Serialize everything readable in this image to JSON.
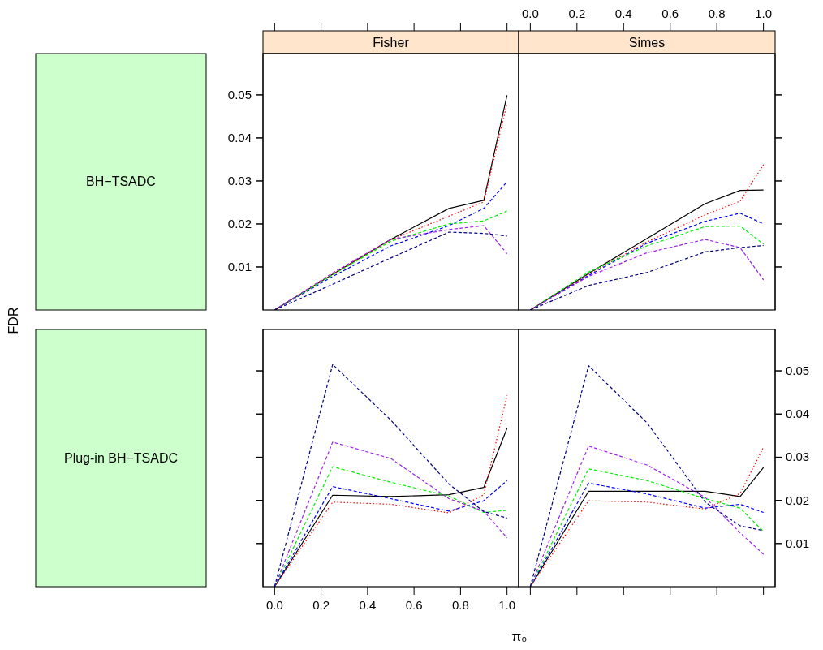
{
  "chart_data": [
    {
      "type": "line",
      "title": "Fisher",
      "ylabel": "FDR",
      "annotations": [
        "BH−TSADC"
      ],
      "x": [
        0,
        0.25,
        0.5,
        0.75,
        0.9,
        1.0
      ],
      "xlim": [
        -0.05,
        1.05
      ],
      "ylim": [
        0,
        0.0596
      ],
      "xticks": [
        {
          "value": 0,
          "label": null
        },
        {
          "value": 0.2,
          "label": null
        },
        {
          "value": 0.4,
          "label": null
        },
        {
          "value": 0.6,
          "label": null
        },
        {
          "value": 0.8,
          "label": null
        },
        {
          "value": 1,
          "label": null
        }
      ],
      "yticks": [
        0.01,
        0.02,
        0.03,
        0.04,
        0.05
      ],
      "tick_labels": "y",
      "marker": "none",
      "grid": false,
      "series": [
        {
          "color": "#000000",
          "line_style": "solid",
          "values": [
            0,
            0.0083,
            0.0164,
            0.0236,
            0.0255,
            0.0499
          ]
        },
        {
          "color": "#ff0000",
          "line_style": "dotted",
          "values": [
            0,
            0.0083,
            0.0163,
            0.0218,
            0.0251,
            0.048
          ]
        },
        {
          "color": "#0000ff",
          "line_style": "dashed",
          "values": [
            0,
            0.0078,
            0.0149,
            0.0196,
            0.0236,
            0.0298
          ]
        },
        {
          "color": "#00ee00",
          "line_style": "dashed",
          "values": [
            0,
            0.0082,
            0.016,
            0.02,
            0.0207,
            0.023
          ]
        },
        {
          "color": "#a020f0",
          "line_style": "dashed",
          "values": [
            0,
            0.0086,
            0.0164,
            0.0187,
            0.0196,
            0.0131
          ]
        },
        {
          "color": "#000080",
          "line_style": "dashed",
          "values": [
            0,
            0.006,
            0.0121,
            0.0181,
            0.0178,
            0.0172
          ]
        }
      ]
    },
    {
      "type": "line",
      "title": "Simes",
      "x": [
        0,
        0.25,
        0.5,
        0.75,
        0.9,
        1.0
      ],
      "xlim": [
        -0.05,
        1.05
      ],
      "ylim": [
        0,
        0.0596
      ],
      "xticks": [
        {
          "value": 0,
          "label": "0.0"
        },
        0.2,
        0.4,
        0.6,
        0.8,
        {
          "value": 1,
          "label": "1.0"
        }
      ],
      "yticks": [
        0.01,
        0.02,
        0.03,
        0.04,
        0.05
      ],
      "tick_labels": "x",
      "marker": "none",
      "grid": false,
      "series": [
        {
          "color": "#000000",
          "line_style": "solid",
          "values": [
            0,
            0.0085,
            0.0166,
            0.0247,
            0.0278,
            0.0279
          ]
        },
        {
          "color": "#ff0000",
          "line_style": "dotted",
          "values": [
            0,
            0.0083,
            0.0158,
            0.0221,
            0.0253,
            0.0338
          ]
        },
        {
          "color": "#0000ff",
          "line_style": "dashed",
          "values": [
            0,
            0.008,
            0.0155,
            0.0206,
            0.0225,
            0.02
          ]
        },
        {
          "color": "#00ee00",
          "line_style": "dashed",
          "values": [
            0,
            0.0088,
            0.0149,
            0.0194,
            0.0195,
            0.0153
          ]
        },
        {
          "color": "#a020f0",
          "line_style": "dashed",
          "values": [
            0,
            0.0078,
            0.0133,
            0.0164,
            0.0145,
            0.007
          ]
        },
        {
          "color": "#000080",
          "line_style": "dashed",
          "values": [
            0,
            0.0057,
            0.0087,
            0.0135,
            0.0145,
            0.015
          ]
        }
      ]
    },
    {
      "type": "line",
      "xlabel": "π₀",
      "annotations": [
        "Plug-in BH−TSADC"
      ],
      "x": [
        0,
        0.25,
        0.5,
        0.75,
        0.9,
        1.0
      ],
      "xlim": [
        -0.05,
        1.05
      ],
      "ylim": [
        0,
        0.0596
      ],
      "xticks": [
        {
          "value": 0,
          "label": "0.0"
        },
        0.2,
        0.4,
        0.6,
        0.8,
        {
          "value": 1,
          "label": "1.0"
        }
      ],
      "yticks": [
        0.01,
        0.02,
        0.03,
        0.04,
        0.05
      ],
      "tick_labels": "x",
      "marker": "none",
      "grid": false,
      "series": [
        {
          "color": "#000000",
          "line_style": "solid",
          "values": [
            0,
            0.0212,
            0.0209,
            0.0213,
            0.023,
            0.0367
          ]
        },
        {
          "color": "#ff0000",
          "line_style": "dotted",
          "values": [
            0,
            0.0196,
            0.0191,
            0.0171,
            0.0213,
            0.0443
          ]
        },
        {
          "color": "#0000ff",
          "line_style": "dashed",
          "values": [
            0,
            0.0232,
            0.0204,
            0.0175,
            0.0199,
            0.0246
          ]
        },
        {
          "color": "#00ee00",
          "line_style": "dashed",
          "values": [
            0,
            0.0278,
            0.0242,
            0.021,
            0.0172,
            0.0177
          ]
        },
        {
          "color": "#a020f0",
          "line_style": "dashed",
          "values": [
            0,
            0.0335,
            0.0297,
            0.0204,
            0.0175,
            0.0113
          ]
        },
        {
          "color": "#000080",
          "line_style": "dashed",
          "values": [
            0,
            0.0515,
            0.0386,
            0.0238,
            0.0174,
            0.0159
          ]
        }
      ]
    },
    {
      "type": "line",
      "x": [
        0,
        0.25,
        0.5,
        0.75,
        0.9,
        1.0
      ],
      "xlim": [
        -0.05,
        1.05
      ],
      "ylim": [
        0,
        0.0596
      ],
      "xticks": [
        {
          "value": 0,
          "label": null
        },
        {
          "value": 0.2,
          "label": null
        },
        {
          "value": 0.4,
          "label": null
        },
        {
          "value": 0.6,
          "label": null
        },
        {
          "value": 0.8,
          "label": null
        },
        {
          "value": 1,
          "label": null
        }
      ],
      "yticks": [
        0.01,
        0.02,
        0.03,
        0.04,
        0.05
      ],
      "tick_labels": "y",
      "marker": "none",
      "grid": false,
      "series": [
        {
          "color": "#000000",
          "line_style": "solid",
          "values": [
            0,
            0.0221,
            0.0221,
            0.0221,
            0.0209,
            0.0276
          ]
        },
        {
          "color": "#ff0000",
          "line_style": "dotted",
          "values": [
            0,
            0.0199,
            0.0196,
            0.018,
            0.0216,
            0.0323
          ]
        },
        {
          "color": "#0000ff",
          "line_style": "dashed",
          "values": [
            0,
            0.024,
            0.0215,
            0.0182,
            0.0191,
            0.0172
          ]
        },
        {
          "color": "#00ee00",
          "line_style": "dashed",
          "values": [
            0,
            0.0273,
            0.0246,
            0.0204,
            0.0182,
            0.0128
          ]
        },
        {
          "color": "#a020f0",
          "line_style": "dashed",
          "values": [
            0,
            0.0326,
            0.0282,
            0.0207,
            0.0125,
            0.0075
          ]
        },
        {
          "color": "#000080",
          "line_style": "dashed",
          "values": [
            0,
            0.0512,
            0.038,
            0.0196,
            0.0141,
            0.013
          ]
        }
      ]
    }
  ]
}
